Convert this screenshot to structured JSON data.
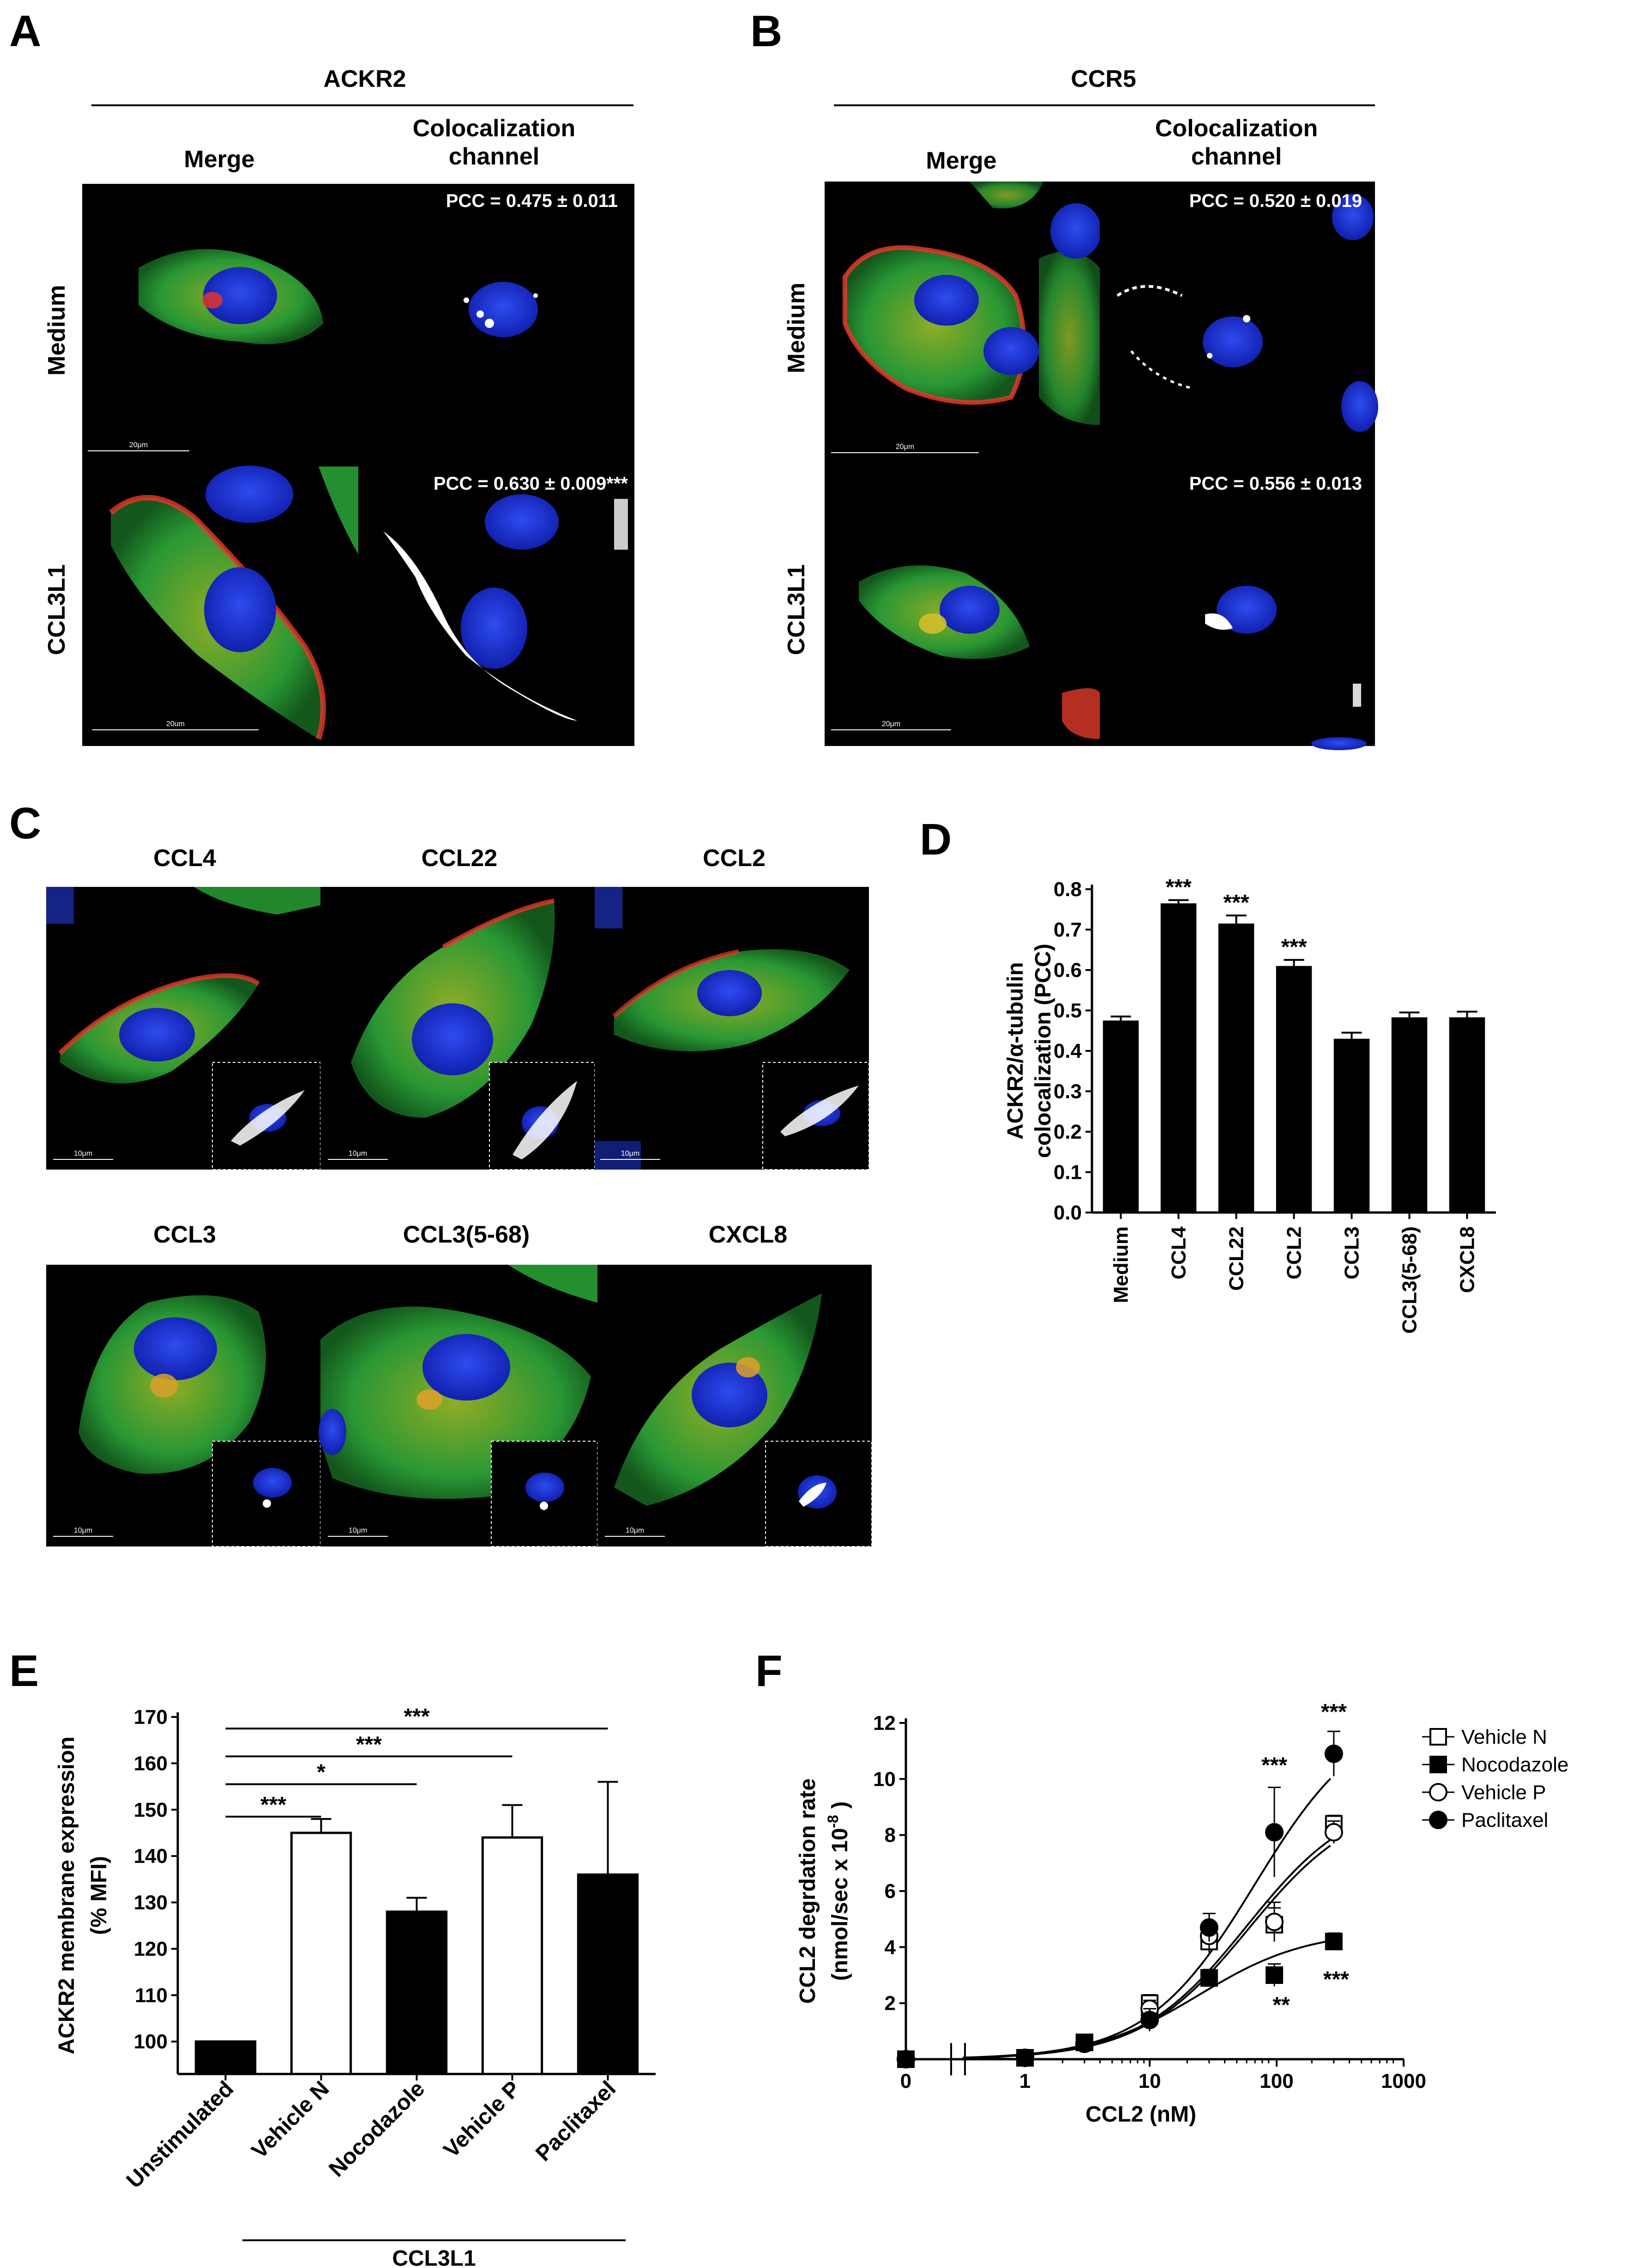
{
  "panels": {
    "A": {
      "letter": "A",
      "title": "ACKR2",
      "col_headers": [
        "Merge",
        "Colocalization",
        "channel"
      ],
      "rows": [
        "Medium",
        "CCL3L1"
      ],
      "pcc": [
        "PCC =  0.475 ± 0.011",
        "PCC =  0.630 ± 0.009***"
      ],
      "scale_labels": [
        "20μm",
        "20um"
      ]
    },
    "B": {
      "letter": "B",
      "title": "CCR5",
      "col_headers": [
        "Merge",
        "Colocalization",
        "channel"
      ],
      "rows": [
        "Medium",
        "CCL3L1"
      ],
      "pcc": [
        "PCC =  0.520 ± 0.019",
        "PCC =  0.556 ± 0.013"
      ],
      "scale_labels": [
        "20μm",
        "20μm"
      ]
    },
    "C": {
      "letter": "C",
      "images": [
        "CCL4",
        "CCL22",
        "CCL2",
        "CCL3",
        "CCL3(5-68)",
        "CXCL8"
      ],
      "scale_label": "10μm"
    },
    "D": {
      "letter": "D"
    },
    "E": {
      "letter": "E",
      "group_label": "CCL3L1"
    },
    "F": {
      "letter": "F"
    }
  },
  "chart_data": [
    {
      "panel": "D",
      "type": "bar",
      "categories": [
        "Medium",
        "CCL4",
        "CCL22",
        "CCL2",
        "CCL3",
        "CCL3(5-68)",
        "CXCL8"
      ],
      "values": [
        0.475,
        0.765,
        0.715,
        0.61,
        0.43,
        0.483,
        0.483
      ],
      "errors": [
        0.01,
        0.008,
        0.02,
        0.015,
        0.015,
        0.012,
        0.014
      ],
      "significance": [
        "",
        "***",
        "***",
        "***",
        "",
        "",
        ""
      ],
      "ylabel_lines": [
        "ACKR2/α-tubulin",
        "colocalization (PCC)"
      ],
      "ylim": [
        0,
        0.8
      ],
      "yticks": [
        "0.0",
        "0.1",
        "0.2",
        "0.3",
        "0.4",
        "0.5",
        "0.6",
        "0.7",
        "0.8"
      ],
      "bar_color": "#000000"
    },
    {
      "panel": "E",
      "type": "bar",
      "categories": [
        "Unstimulated",
        "Vehicle N",
        "Nocodazole",
        "Vehicle P",
        "Paclitaxel"
      ],
      "values": [
        100,
        145,
        128,
        144,
        136
      ],
      "errors": [
        0,
        3,
        3,
        7,
        20
      ],
      "fills": [
        "#000000",
        "#ffffff",
        "#000000",
        "#ffffff",
        "#000000"
      ],
      "ylabel_lines": [
        "ACKR2 membrane expression",
        "(% MFI)"
      ],
      "ylim": [
        93,
        170
      ],
      "yticks": [
        "100",
        "110",
        "120",
        "130",
        "140",
        "150",
        "160",
        "170"
      ],
      "comparisons": [
        {
          "to": "Vehicle N",
          "label": "***"
        },
        {
          "to": "Nocodazole",
          "label": "*"
        },
        {
          "to": "Vehicle P",
          "label": "***"
        },
        {
          "to": "Paclitaxel",
          "label": "***"
        }
      ]
    },
    {
      "panel": "F",
      "type": "scatter",
      "xlabel": "CCL2 (nM)",
      "ylabel_lines": [
        "CCL2 degrdation rate",
        "(nmol/sec x 10"
      ],
      "ylabel_exp": "-8",
      "ylabel_close": ")",
      "xscale": "log",
      "xticks": [
        "0",
        "1",
        "10",
        "100",
        "1000"
      ],
      "ylim": [
        0,
        12
      ],
      "yticks": [
        "2",
        "4",
        "6",
        "8",
        "10",
        "12"
      ],
      "x": [
        0,
        1,
        3,
        10,
        30,
        100,
        300
      ],
      "series": [
        {
          "name": "Vehicle N",
          "marker": "square-open",
          "values": [
            0,
            0.05,
            0.6,
            2.0,
            4.2,
            4.8,
            8.4
          ],
          "errors": [
            0.1,
            0.1,
            0.2,
            0.3,
            0.4,
            0.6,
            0.3
          ]
        },
        {
          "name": "Nocodazole",
          "marker": "square-filled",
          "values": [
            0,
            0.05,
            0.6,
            1.6,
            2.9,
            3.0,
            4.2
          ],
          "errors": [
            0.1,
            0.1,
            0.2,
            0.3,
            0.3,
            0.4,
            0.3
          ]
        },
        {
          "name": "Vehicle P",
          "marker": "circle-open",
          "values": [
            0,
            0.05,
            0.55,
            1.8,
            4.4,
            4.9,
            8.1
          ],
          "errors": [
            0.1,
            0.1,
            0.2,
            0.3,
            0.5,
            0.7,
            0.4
          ]
        },
        {
          "name": "Paclitaxel",
          "marker": "circle-filled",
          "values": [
            0,
            0.05,
            0.55,
            1.4,
            4.7,
            8.1,
            10.9
          ],
          "errors": [
            0.1,
            0.1,
            0.2,
            0.4,
            0.5,
            1.6,
            0.8
          ]
        }
      ],
      "annotations": [
        "***",
        "***",
        "**",
        "***"
      ]
    }
  ]
}
